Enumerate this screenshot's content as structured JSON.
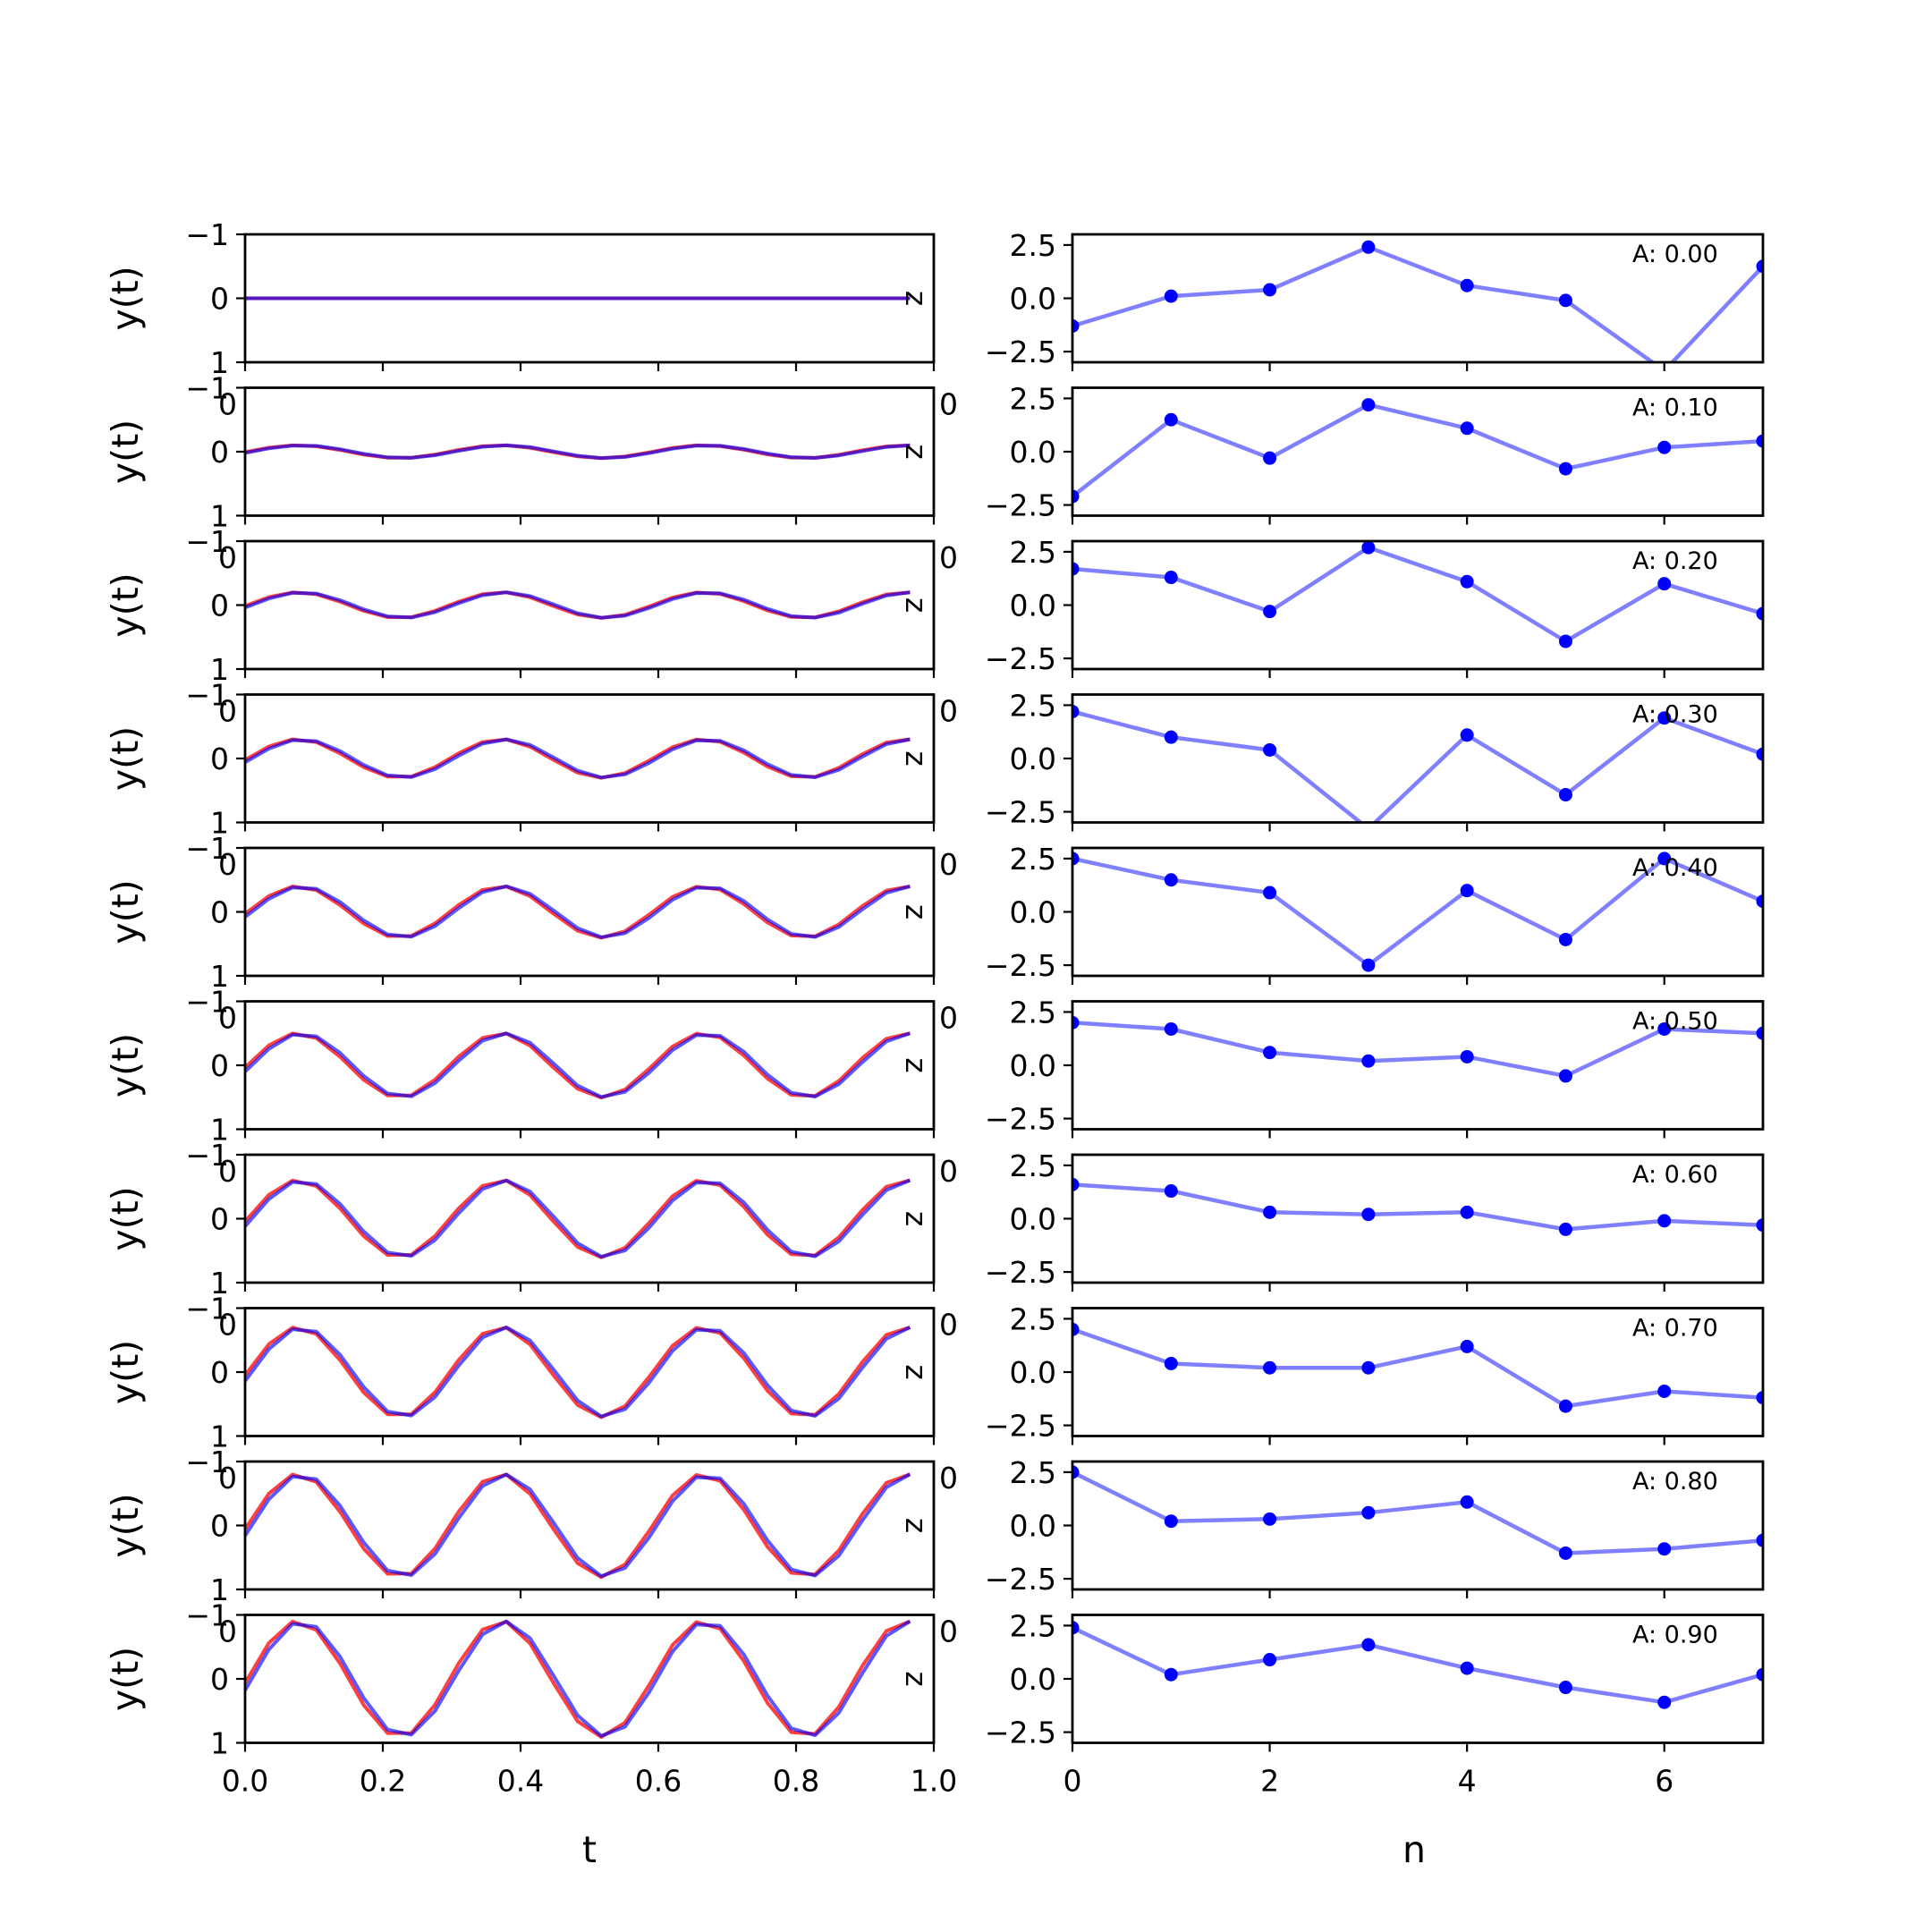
{
  "chart_data": {
    "type": "line",
    "colors": {
      "wave_a": "#ff0000",
      "wave_b": "#0000ff",
      "series_line": "#0000ff",
      "series_point": "#0000ff"
    },
    "left": {
      "xlabel": "t",
      "ylabel": "y(t)",
      "xlim": [
        0.0,
        1.0
      ],
      "ylim": [
        -1,
        1
      ],
      "xticks": [
        "0.0",
        "0.2",
        "0.4",
        "0.6",
        "0.8",
        "1.0"
      ],
      "yticks": [
        "−1",
        "0",
        "1"
      ],
      "overlap_tick_label": "0",
      "overlap_tick_label_right": "0",
      "corner_glyph": "z",
      "t": [
        0.0,
        0.0345,
        0.069,
        0.1034,
        0.1379,
        0.1724,
        0.2069,
        0.2414,
        0.2759,
        0.3103,
        0.3448,
        0.3793,
        0.4138,
        0.4483,
        0.4828,
        0.5172,
        0.5517,
        0.5862,
        0.6207,
        0.6552,
        0.6897,
        0.7241,
        0.7586,
        0.7931,
        0.8276,
        0.8621,
        0.8966,
        0.931,
        0.9655
      ],
      "amplitudes": [
        0.0,
        0.1,
        0.2,
        0.3,
        0.4,
        0.5,
        0.6,
        0.7,
        0.8,
        0.9
      ]
    },
    "right": {
      "xlabel": "n",
      "xlim": [
        0,
        7
      ],
      "ylim": [
        -3.0,
        3.0
      ],
      "xticks": [
        "0",
        "2",
        "4",
        "6"
      ],
      "yticks": [
        "2.5",
        "0.0",
        "−2.5"
      ],
      "panels": [
        {
          "label": "A: 0.00",
          "n": [
            0,
            1,
            2,
            3,
            4,
            5,
            6,
            7
          ],
          "values": [
            -1.3,
            0.1,
            0.4,
            2.4,
            0.6,
            -0.1,
            -3.4,
            1.5
          ]
        },
        {
          "label": "A: 0.10",
          "n": [
            0,
            1,
            2,
            3,
            4,
            5,
            6,
            7
          ],
          "values": [
            -2.1,
            1.5,
            -0.3,
            2.2,
            1.1,
            -0.8,
            0.2,
            0.5
          ]
        },
        {
          "label": "A: 0.20",
          "n": [
            0,
            1,
            2,
            3,
            4,
            5,
            6,
            7
          ],
          "values": [
            1.7,
            1.3,
            -0.3,
            2.7,
            1.1,
            -1.7,
            1.0,
            -0.4
          ]
        },
        {
          "label": "A: 0.30",
          "n": [
            0,
            1,
            2,
            3,
            4,
            5,
            6,
            7
          ],
          "values": [
            2.2,
            1.0,
            0.4,
            -3.3,
            1.1,
            -1.7,
            1.9,
            0.2
          ]
        },
        {
          "label": "A: 0.40",
          "n": [
            0,
            1,
            2,
            3,
            4,
            5,
            6,
            7
          ],
          "values": [
            2.5,
            1.5,
            0.9,
            -2.5,
            1.0,
            -1.3,
            2.5,
            0.5
          ]
        },
        {
          "label": "A: 0.50",
          "n": [
            0,
            1,
            2,
            3,
            4,
            5,
            6,
            7
          ],
          "values": [
            2.0,
            1.7,
            0.6,
            0.2,
            0.4,
            -0.5,
            1.7,
            1.5
          ]
        },
        {
          "label": "A: 0.60",
          "n": [
            0,
            1,
            2,
            3,
            4,
            5,
            6,
            7
          ],
          "values": [
            1.6,
            1.3,
            0.3,
            0.2,
            0.3,
            -0.5,
            -0.1,
            -0.3
          ]
        },
        {
          "label": "A: 0.70",
          "n": [
            0,
            1,
            2,
            3,
            4,
            5,
            6,
            7
          ],
          "values": [
            2.0,
            0.4,
            0.2,
            0.2,
            1.2,
            -1.6,
            -0.9,
            -1.2
          ]
        },
        {
          "label": "A: 0.80",
          "n": [
            0,
            1,
            2,
            3,
            4,
            5,
            6,
            7
          ],
          "values": [
            2.5,
            0.2,
            0.3,
            0.6,
            1.1,
            -1.3,
            -1.1,
            -0.7
          ]
        },
        {
          "label": "A: 0.90",
          "n": [
            0,
            1,
            2,
            3,
            4,
            5,
            6,
            7
          ],
          "values": [
            2.4,
            0.2,
            0.9,
            1.6,
            0.5,
            -0.4,
            -1.1,
            0.2
          ]
        }
      ]
    }
  }
}
